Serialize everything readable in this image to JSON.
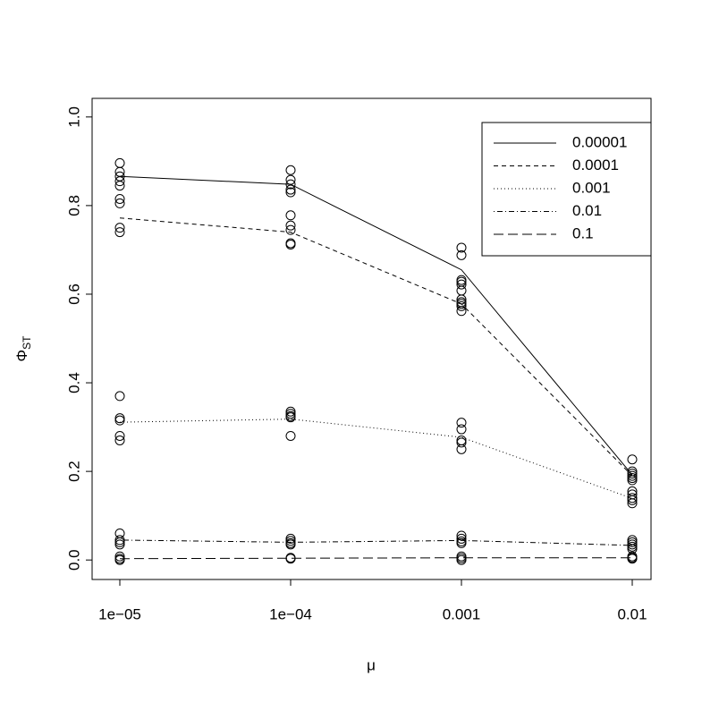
{
  "chart_data": {
    "type": "line",
    "xlabel": "μ",
    "ylabel": "Φ",
    "ylabel_sub": "ST",
    "categories": [
      "1e−05",
      "1e−04",
      "0.001",
      "0.01"
    ],
    "ylim": [
      -0.044,
      1.042
    ],
    "yticks": [
      {
        "value": 0,
        "label": "0.0"
      },
      0.2,
      0.4,
      0.6,
      0.8,
      {
        "value": 1,
        "label": "1.0"
      }
    ],
    "color": "#000000",
    "legend": "top-right",
    "series": [
      {
        "name": "0.00001",
        "linestyle": "solid",
        "values": [
          0.866,
          0.848,
          0.655,
          0.192
        ]
      },
      {
        "name": "0.0001",
        "linestyle": "dashed",
        "values": [
          0.772,
          0.74,
          0.578,
          0.19
        ]
      },
      {
        "name": "0.001",
        "linestyle": "dotted",
        "values": [
          0.311,
          0.318,
          0.277,
          0.139
        ]
      },
      {
        "name": "0.01",
        "linestyle": "dotdash",
        "values": [
          0.045,
          0.04,
          0.044,
          0.033
        ]
      },
      {
        "name": "0.1",
        "linestyle": "longdash",
        "values": [
          0.003,
          0.004,
          0.005,
          0.005
        ]
      }
    ],
    "points": [
      [
        0.896,
        0.876,
        0.866,
        0.855,
        0.845,
        0.815,
        0.805,
        0.75,
        0.74,
        0.37,
        0.32,
        0.315,
        0.28,
        0.27,
        0.06,
        0.045,
        0.04,
        0.035,
        0.008,
        0.003,
        0.0
      ],
      [
        0.88,
        0.858,
        0.848,
        0.836,
        0.83,
        0.778,
        0.755,
        0.745,
        0.715,
        0.712,
        0.335,
        0.33,
        0.325,
        0.322,
        0.28,
        0.048,
        0.043,
        0.038,
        0.035,
        0.005,
        0.003
      ],
      [
        0.705,
        0.688,
        0.632,
        0.628,
        0.622,
        0.608,
        0.588,
        0.582,
        0.578,
        0.573,
        0.562,
        0.31,
        0.295,
        0.27,
        0.265,
        0.25,
        0.055,
        0.048,
        0.042,
        0.038,
        0.008,
        0.004,
        0.0
      ],
      [
        0.227,
        0.2,
        0.195,
        0.19,
        0.185,
        0.18,
        0.155,
        0.148,
        0.14,
        0.135,
        0.128,
        0.045,
        0.04,
        0.035,
        0.03,
        0.025,
        0.008,
        0.005,
        0.003
      ]
    ]
  }
}
